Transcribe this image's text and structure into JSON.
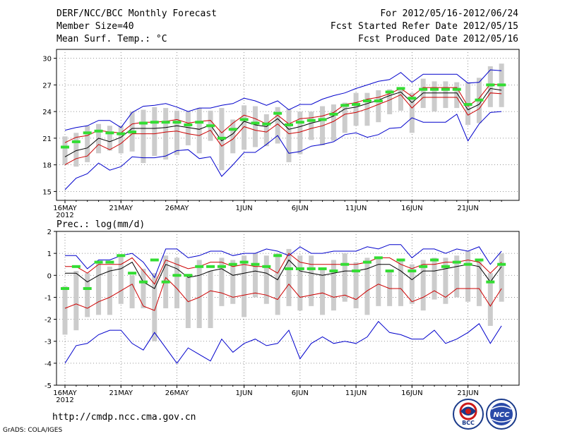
{
  "header": {
    "title": "DERF/NCC/BCC Monthly Forecast",
    "member_size": "Member Size=40",
    "variable": "Mean Surf. Temp.: °C",
    "forecast_period": "For 2012/05/16-2012/06/24",
    "started_date": "Fcst Started Refer Date 2012/05/15",
    "produced_date": "Fcst Produced Date 2012/05/16"
  },
  "footer": {
    "url": "http://cmdp.ncc.cma.gov.cn",
    "grads": "GrADS: COLA/IGES",
    "logo1_text": "BCC",
    "logo2_text": "NCC"
  },
  "chart_data": [
    {
      "type": "line",
      "title": "Mean Surf. Temp.: °C",
      "xlabel": "",
      "ylabel": "",
      "ylim": [
        14,
        31
      ],
      "yticks": [
        "15",
        "18",
        "21",
        "24",
        "27",
        "30"
      ],
      "year_label": "2012",
      "xtick_labels": [
        {
          "label": "16MAY",
          "day": 0
        },
        {
          "label": "21MAY",
          "day": 5
        },
        {
          "label": "26MAY",
          "day": 10
        },
        {
          "label": "1JUN",
          "day": 16
        },
        {
          "label": "6JUN",
          "day": 21
        },
        {
          "label": "11JUN",
          "day": 26
        },
        {
          "label": "16JUN",
          "day": 31
        },
        {
          "label": "21JUN",
          "day": 36
        }
      ],
      "days": [
        0,
        1,
        2,
        3,
        4,
        5,
        6,
        7,
        8,
        9,
        10,
        11,
        12,
        13,
        14,
        15,
        16,
        17,
        18,
        19,
        20,
        21,
        22,
        23,
        24,
        25,
        26,
        27,
        28,
        29,
        30,
        31,
        32,
        33,
        34,
        35,
        36,
        37,
        38,
        39
      ],
      "series": [
        {
          "name": "max",
          "color": "#0000cc",
          "values": [
            21.9,
            22.2,
            22.4,
            23.0,
            23.0,
            22.2,
            23.9,
            24.6,
            24.7,
            24.9,
            24.5,
            24.0,
            24.4,
            24.4,
            24.7,
            24.9,
            25.5,
            25.2,
            24.7,
            25.2,
            24.2,
            24.8,
            24.8,
            25.4,
            25.8,
            26.1,
            26.6,
            27.0,
            27.4,
            27.6,
            28.4,
            27.3,
            28.2,
            28.2,
            28.2,
            28.2,
            27.2,
            27.3,
            28.7,
            28.6
          ]
        },
        {
          "name": "upper",
          "color": "#cc0000",
          "values": [
            20.5,
            21.1,
            21.3,
            21.9,
            21.7,
            21.6,
            22.6,
            22.8,
            22.8,
            22.9,
            23.1,
            22.7,
            22.9,
            23.0,
            21.6,
            22.7,
            23.6,
            23.2,
            22.6,
            23.6,
            22.6,
            23.2,
            23.3,
            23.5,
            23.9,
            24.8,
            25.0,
            25.4,
            25.6,
            26.0,
            26.6,
            25.7,
            26.7,
            26.7,
            26.7,
            26.7,
            24.6,
            25.5,
            27.1,
            27.0
          ]
        },
        {
          "name": "mean",
          "color": "#000000",
          "values": [
            18.9,
            19.6,
            19.9,
            21.0,
            20.6,
            21.1,
            22.1,
            22.1,
            22.1,
            22.2,
            22.4,
            22.2,
            22.0,
            22.5,
            20.7,
            21.5,
            22.9,
            22.5,
            22.3,
            23.2,
            22.0,
            22.3,
            22.7,
            23.0,
            23.5,
            24.3,
            24.5,
            24.9,
            25.3,
            25.8,
            26.2,
            25.0,
            26.1,
            26.1,
            26.1,
            26.1,
            24.2,
            24.8,
            26.6,
            26.4
          ]
        },
        {
          "name": "lower",
          "color": "#cc0000",
          "values": [
            18.0,
            18.7,
            19.0,
            20.3,
            19.7,
            20.4,
            21.5,
            21.5,
            21.5,
            21.7,
            21.8,
            21.5,
            21.3,
            21.9,
            20.1,
            20.9,
            22.3,
            21.9,
            21.7,
            22.6,
            21.5,
            21.7,
            22.1,
            22.4,
            22.9,
            23.7,
            23.9,
            24.3,
            24.8,
            25.3,
            25.9,
            24.4,
            25.6,
            25.6,
            25.6,
            25.6,
            23.6,
            24.3,
            26.1,
            26.0
          ]
        },
        {
          "name": "min",
          "color": "#0000cc",
          "values": [
            15.2,
            16.5,
            17.0,
            18.2,
            17.4,
            17.8,
            18.9,
            18.8,
            18.8,
            19.0,
            19.6,
            19.7,
            18.7,
            18.9,
            16.7,
            18.0,
            19.4,
            19.4,
            20.3,
            21.3,
            19.3,
            19.5,
            20.1,
            20.3,
            20.6,
            21.4,
            21.6,
            21.1,
            21.4,
            22.1,
            22.2,
            23.3,
            22.8,
            22.8,
            22.8,
            23.7,
            20.7,
            22.6,
            23.9,
            24.0
          ]
        }
      ],
      "green_markers": [
        20.0,
        20.6,
        21.6,
        21.8,
        21.6,
        21.5,
        21.7,
        22.7,
        22.8,
        22.8,
        22.8,
        22.5,
        22.8,
        22.4,
        21.0,
        22.0,
        23.1,
        22.7,
        22.6,
        23.8,
        22.5,
        22.8,
        23.0,
        23.1,
        23.7,
        24.7,
        24.8,
        25.2,
        25.2,
        26.2,
        26.6,
        25.5,
        26.5,
        26.5,
        26.5,
        26.5,
        24.8,
        25.3,
        27.0,
        27.0
      ],
      "gray_bars": [
        [
          18.0,
          21.2
        ],
        [
          17.8,
          21.6
        ],
        [
          18.3,
          22.4
        ],
        [
          19.3,
          22.6
        ],
        [
          19.6,
          22.4
        ],
        [
          19.3,
          22.4
        ],
        [
          19.5,
          24.0
        ],
        [
          18.2,
          24.2
        ],
        [
          19.0,
          24.5
        ],
        [
          18.6,
          24.4
        ],
        [
          19.1,
          24.1
        ],
        [
          20.2,
          24.0
        ],
        [
          19.3,
          24.4
        ],
        [
          20.7,
          24.1
        ],
        [
          17.4,
          24.4
        ],
        [
          19.3,
          23.1
        ],
        [
          19.7,
          24.7
        ],
        [
          20.0,
          24.6
        ],
        [
          20.1,
          23.7
        ],
        [
          20.4,
          24.5
        ],
        [
          18.3,
          24.3
        ],
        [
          19.2,
          24.0
        ],
        [
          20.8,
          24.0
        ],
        [
          20.2,
          24.6
        ],
        [
          20.7,
          24.8
        ],
        [
          21.6,
          25.0
        ],
        [
          22.4,
          26.1
        ],
        [
          22.4,
          26.1
        ],
        [
          22.8,
          26.4
        ],
        [
          23.7,
          26.5
        ],
        [
          24.1,
          26.5
        ],
        [
          21.6,
          26.1
        ],
        [
          24.4,
          27.7
        ],
        [
          24.0,
          27.4
        ],
        [
          24.4,
          27.4
        ],
        [
          24.4,
          27.3
        ],
        [
          22.5,
          27.3
        ],
        [
          22.7,
          27.8
        ],
        [
          24.5,
          29.1
        ],
        [
          24.5,
          29.4
        ]
      ]
    },
    {
      "type": "line",
      "title": "Prec.: log(mm/d)",
      "xlabel": "",
      "ylabel": "",
      "ylim": [
        -5,
        2
      ],
      "yticks": [
        "-5",
        "-4",
        "-3",
        "-2",
        "-1",
        "0",
        "1",
        "2"
      ],
      "year_label": "2012",
      "xtick_labels": [
        {
          "label": "16MAY",
          "day": 0
        },
        {
          "label": "21MAY",
          "day": 5
        },
        {
          "label": "26MAY",
          "day": 10
        },
        {
          "label": "1JUN",
          "day": 16
        },
        {
          "label": "6JUN",
          "day": 21
        },
        {
          "label": "11JUN",
          "day": 26
        },
        {
          "label": "16JUN",
          "day": 31
        },
        {
          "label": "21JUN",
          "day": 36
        }
      ],
      "days": [
        0,
        1,
        2,
        3,
        4,
        5,
        6,
        7,
        8,
        9,
        10,
        11,
        12,
        13,
        14,
        15,
        16,
        17,
        18,
        19,
        20,
        21,
        22,
        23,
        24,
        25,
        26,
        27,
        28,
        29,
        30,
        31,
        32,
        33,
        34,
        35,
        36,
        37,
        38,
        39
      ],
      "series": [
        {
          "name": "max",
          "color": "#0000cc",
          "values": [
            0.9,
            0.9,
            0.3,
            0.7,
            0.7,
            0.9,
            1.0,
            0.6,
            -0.1,
            1.2,
            1.2,
            0.8,
            0.9,
            1.1,
            1.1,
            0.9,
            1.0,
            1.0,
            1.2,
            1.1,
            0.9,
            1.3,
            1.0,
            1.0,
            1.1,
            1.1,
            1.1,
            1.3,
            1.2,
            1.4,
            1.4,
            0.8,
            1.2,
            1.2,
            1.0,
            1.2,
            1.1,
            1.3,
            0.5,
            1.1
          ]
        },
        {
          "name": "upper",
          "color": "#cc0000",
          "values": [
            0.4,
            0.4,
            0.1,
            0.5,
            0.5,
            0.5,
            0.8,
            0.2,
            -0.4,
            0.7,
            0.5,
            0.3,
            0.4,
            0.6,
            0.6,
            0.4,
            0.5,
            0.4,
            0.4,
            0.1,
            1.0,
            0.6,
            0.5,
            0.5,
            0.5,
            0.5,
            0.5,
            0.6,
            0.8,
            0.8,
            0.5,
            0.3,
            0.5,
            0.5,
            0.6,
            0.6,
            0.7,
            0.6,
            0.1,
            0.6
          ]
        },
        {
          "name": "mean",
          "color": "#000000",
          "values": [
            0.1,
            0.1,
            -0.3,
            0.0,
            0.2,
            0.3,
            0.6,
            -0.3,
            -0.6,
            0.5,
            0.3,
            -0.1,
            0.0,
            0.2,
            0.3,
            0.0,
            0.1,
            0.2,
            0.1,
            -0.2,
            0.7,
            0.2,
            0.1,
            0.0,
            0.1,
            0.2,
            0.2,
            0.3,
            0.5,
            0.5,
            0.2,
            -0.2,
            0.2,
            0.2,
            0.3,
            0.4,
            0.5,
            0.4,
            -0.3,
            0.4
          ]
        },
        {
          "name": "lower",
          "color": "#cc0000",
          "values": [
            -1.5,
            -1.3,
            -1.5,
            -1.2,
            -1.0,
            -0.7,
            -0.4,
            -1.4,
            -1.6,
            -0.1,
            -0.6,
            -1.2,
            -1.0,
            -0.7,
            -0.8,
            -1.0,
            -0.9,
            -0.8,
            -0.9,
            -1.1,
            -0.4,
            -1.0,
            -0.9,
            -0.8,
            -1.0,
            -0.9,
            -1.1,
            -0.7,
            -0.4,
            -0.6,
            -0.6,
            -1.2,
            -1.0,
            -0.7,
            -1.0,
            -0.6,
            -0.6,
            -0.6,
            -1.4,
            -0.6
          ]
        },
        {
          "name": "min",
          "color": "#0000cc",
          "values": [
            -4.0,
            -3.2,
            -3.1,
            -2.7,
            -2.5,
            -2.5,
            -3.1,
            -3.4,
            -2.6,
            -3.3,
            -4.0,
            -3.3,
            -3.6,
            -3.9,
            -2.9,
            -3.5,
            -3.1,
            -2.9,
            -3.2,
            -3.1,
            -2.5,
            -3.8,
            -3.1,
            -2.8,
            -3.1,
            -3.0,
            -3.1,
            -2.8,
            -2.1,
            -2.6,
            -2.7,
            -2.9,
            -2.9,
            -2.5,
            -3.1,
            -2.9,
            -2.6,
            -2.2,
            -3.1,
            -2.3
          ]
        }
      ],
      "green_markers": [
        -0.6,
        0.4,
        -0.6,
        0.6,
        0.6,
        0.9,
        0.1,
        -0.3,
        0.7,
        -0.3,
        0.0,
        0.0,
        0.4,
        0.4,
        0.4,
        0.5,
        0.6,
        0.5,
        0.4,
        0.9,
        0.3,
        0.3,
        0.3,
        0.3,
        0.2,
        0.5,
        0.2,
        0.6,
        0.8,
        0.2,
        0.7,
        0.2,
        0.4,
        0.7,
        0.4,
        0.6,
        0.5,
        0.7,
        -0.3,
        0.5
      ],
      "gray_bars": [
        [
          -2.7,
          -0.5
        ],
        [
          -2.5,
          0.2
        ],
        [
          -1.9,
          0.1
        ],
        [
          -1.8,
          0.6
        ],
        [
          -1.8,
          0.4
        ],
        [
          -1.3,
          0.9
        ],
        [
          -1.5,
          0.0
        ],
        [
          -1.5,
          0.3
        ],
        [
          -3.0,
          0.1
        ],
        [
          -1.5,
          0.9
        ],
        [
          -1.5,
          0.8
        ],
        [
          -2.4,
          -0.1
        ],
        [
          -2.4,
          0.7
        ],
        [
          -2.4,
          0.2
        ],
        [
          -1.4,
          0.8
        ],
        [
          -1.3,
          0.7
        ],
        [
          -1.9,
          0.9
        ],
        [
          -1.0,
          1.0
        ],
        [
          -1.3,
          0.9
        ],
        [
          -1.8,
          1.0
        ],
        [
          -1.4,
          1.2
        ],
        [
          -1.6,
          0.9
        ],
        [
          -1.4,
          0.9
        ],
        [
          -1.8,
          0.3
        ],
        [
          -1.6,
          0.7
        ],
        [
          -1.2,
          1.0
        ],
        [
          -1.5,
          0.6
        ],
        [
          -1.8,
          0.8
        ],
        [
          -1.4,
          0.8
        ],
        [
          -1.4,
          0.2
        ],
        [
          -1.4,
          0.7
        ],
        [
          -1.3,
          0.5
        ],
        [
          -1.6,
          0.7
        ],
        [
          -1.1,
          0.8
        ],
        [
          -1.3,
          0.8
        ],
        [
          -1.0,
          0.9
        ],
        [
          -1.2,
          1.1
        ],
        [
          -1.4,
          0.7
        ],
        [
          -2.3,
          0.1
        ],
        [
          -1.2,
          1.0
        ]
      ]
    }
  ]
}
